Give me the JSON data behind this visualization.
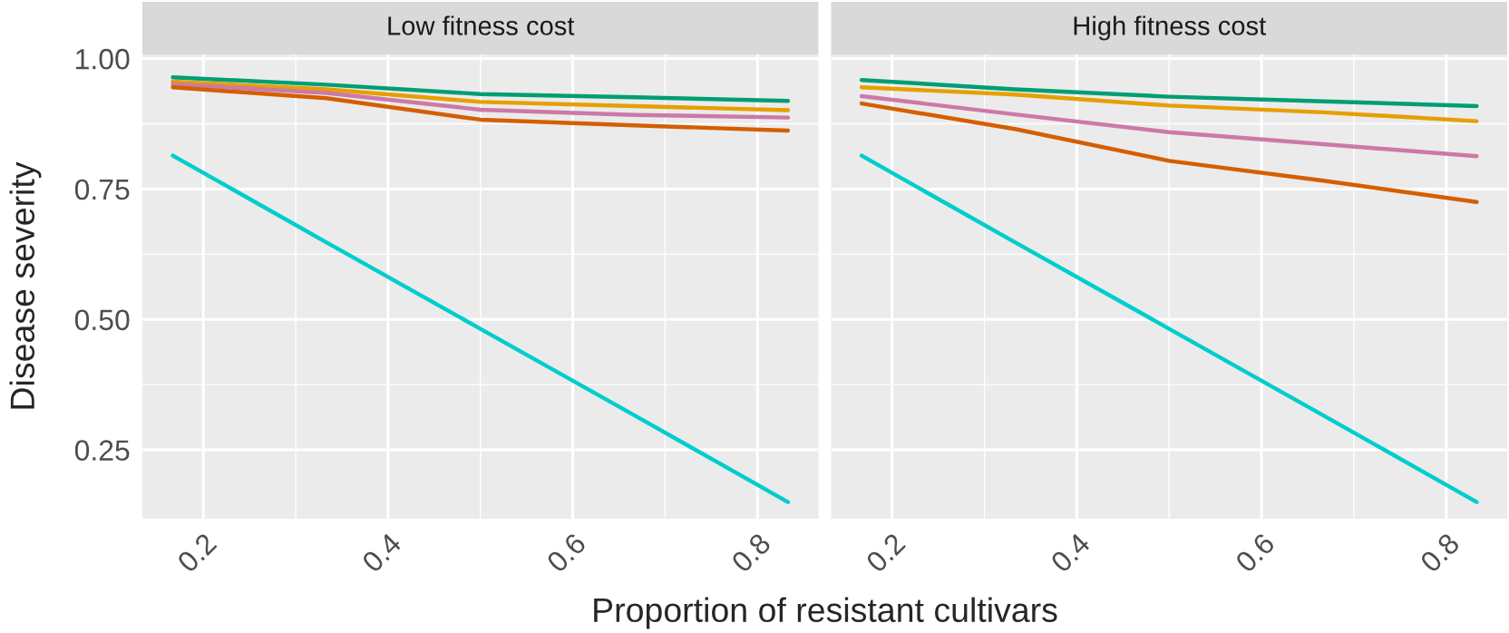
{
  "chart_data": [
    {
      "type": "line",
      "title": "Low fitness cost",
      "ylabel": "Disease severity",
      "xlabel": "Proportion of resistant cultivars",
      "x": [
        0.167,
        0.333,
        0.5,
        0.667,
        0.833
      ],
      "series": [
        {
          "color": "#009e73",
          "values": [
            0.964,
            0.95,
            0.932,
            0.926,
            0.919
          ]
        },
        {
          "color": "#e69f00",
          "values": [
            0.956,
            0.941,
            0.917,
            0.909,
            0.901
          ]
        },
        {
          "color": "#cc79a7",
          "values": [
            0.951,
            0.934,
            0.902,
            0.892,
            0.887
          ]
        },
        {
          "color": "#d55e00",
          "values": [
            0.945,
            0.924,
            0.883,
            0.872,
            0.862
          ]
        },
        {
          "color": "#00cdcd",
          "values": [
            0.814,
            0.648,
            0.482,
            0.316,
            0.15
          ]
        }
      ],
      "xlim": [
        0.134,
        0.866
      ],
      "ylim": [
        0.118,
        1.008
      ],
      "xticks": [
        0.2,
        0.4,
        0.6,
        0.8
      ],
      "yticks": [
        {
          "value": 0.25,
          "label": "0.25"
        },
        {
          "value": 0.5,
          "label": "0.50"
        },
        {
          "value": 0.75,
          "label": "0.75"
        },
        {
          "value": 1.0,
          "label": "1.00"
        }
      ],
      "grid": true
    },
    {
      "type": "line",
      "title": "High fitness cost",
      "x": [
        0.167,
        0.333,
        0.5,
        0.667,
        0.833
      ],
      "series": [
        {
          "color": "#009e73",
          "values": [
            0.959,
            0.941,
            0.927,
            0.918,
            0.909
          ]
        },
        {
          "color": "#e69f00",
          "values": [
            0.945,
            0.931,
            0.91,
            0.897,
            0.88
          ]
        },
        {
          "color": "#cc79a7",
          "values": [
            0.928,
            0.893,
            0.859,
            0.836,
            0.813
          ]
        },
        {
          "color": "#d55e00",
          "values": [
            0.914,
            0.865,
            0.804,
            0.766,
            0.725
          ]
        },
        {
          "color": "#00cdcd",
          "values": [
            0.814,
            0.648,
            0.482,
            0.316,
            0.15
          ]
        }
      ],
      "xlim": [
        0.134,
        0.866
      ],
      "ylim": [
        0.118,
        1.008
      ],
      "xticks": [
        0.2,
        0.4,
        0.6,
        0.8
      ],
      "yticks": [
        {
          "value": 0.25,
          "label": null
        },
        {
          "value": 0.5,
          "label": null
        },
        {
          "value": 0.75,
          "label": null
        },
        {
          "value": 1.0,
          "label": null
        }
      ],
      "grid": true,
      "tick_labels": "x"
    }
  ]
}
